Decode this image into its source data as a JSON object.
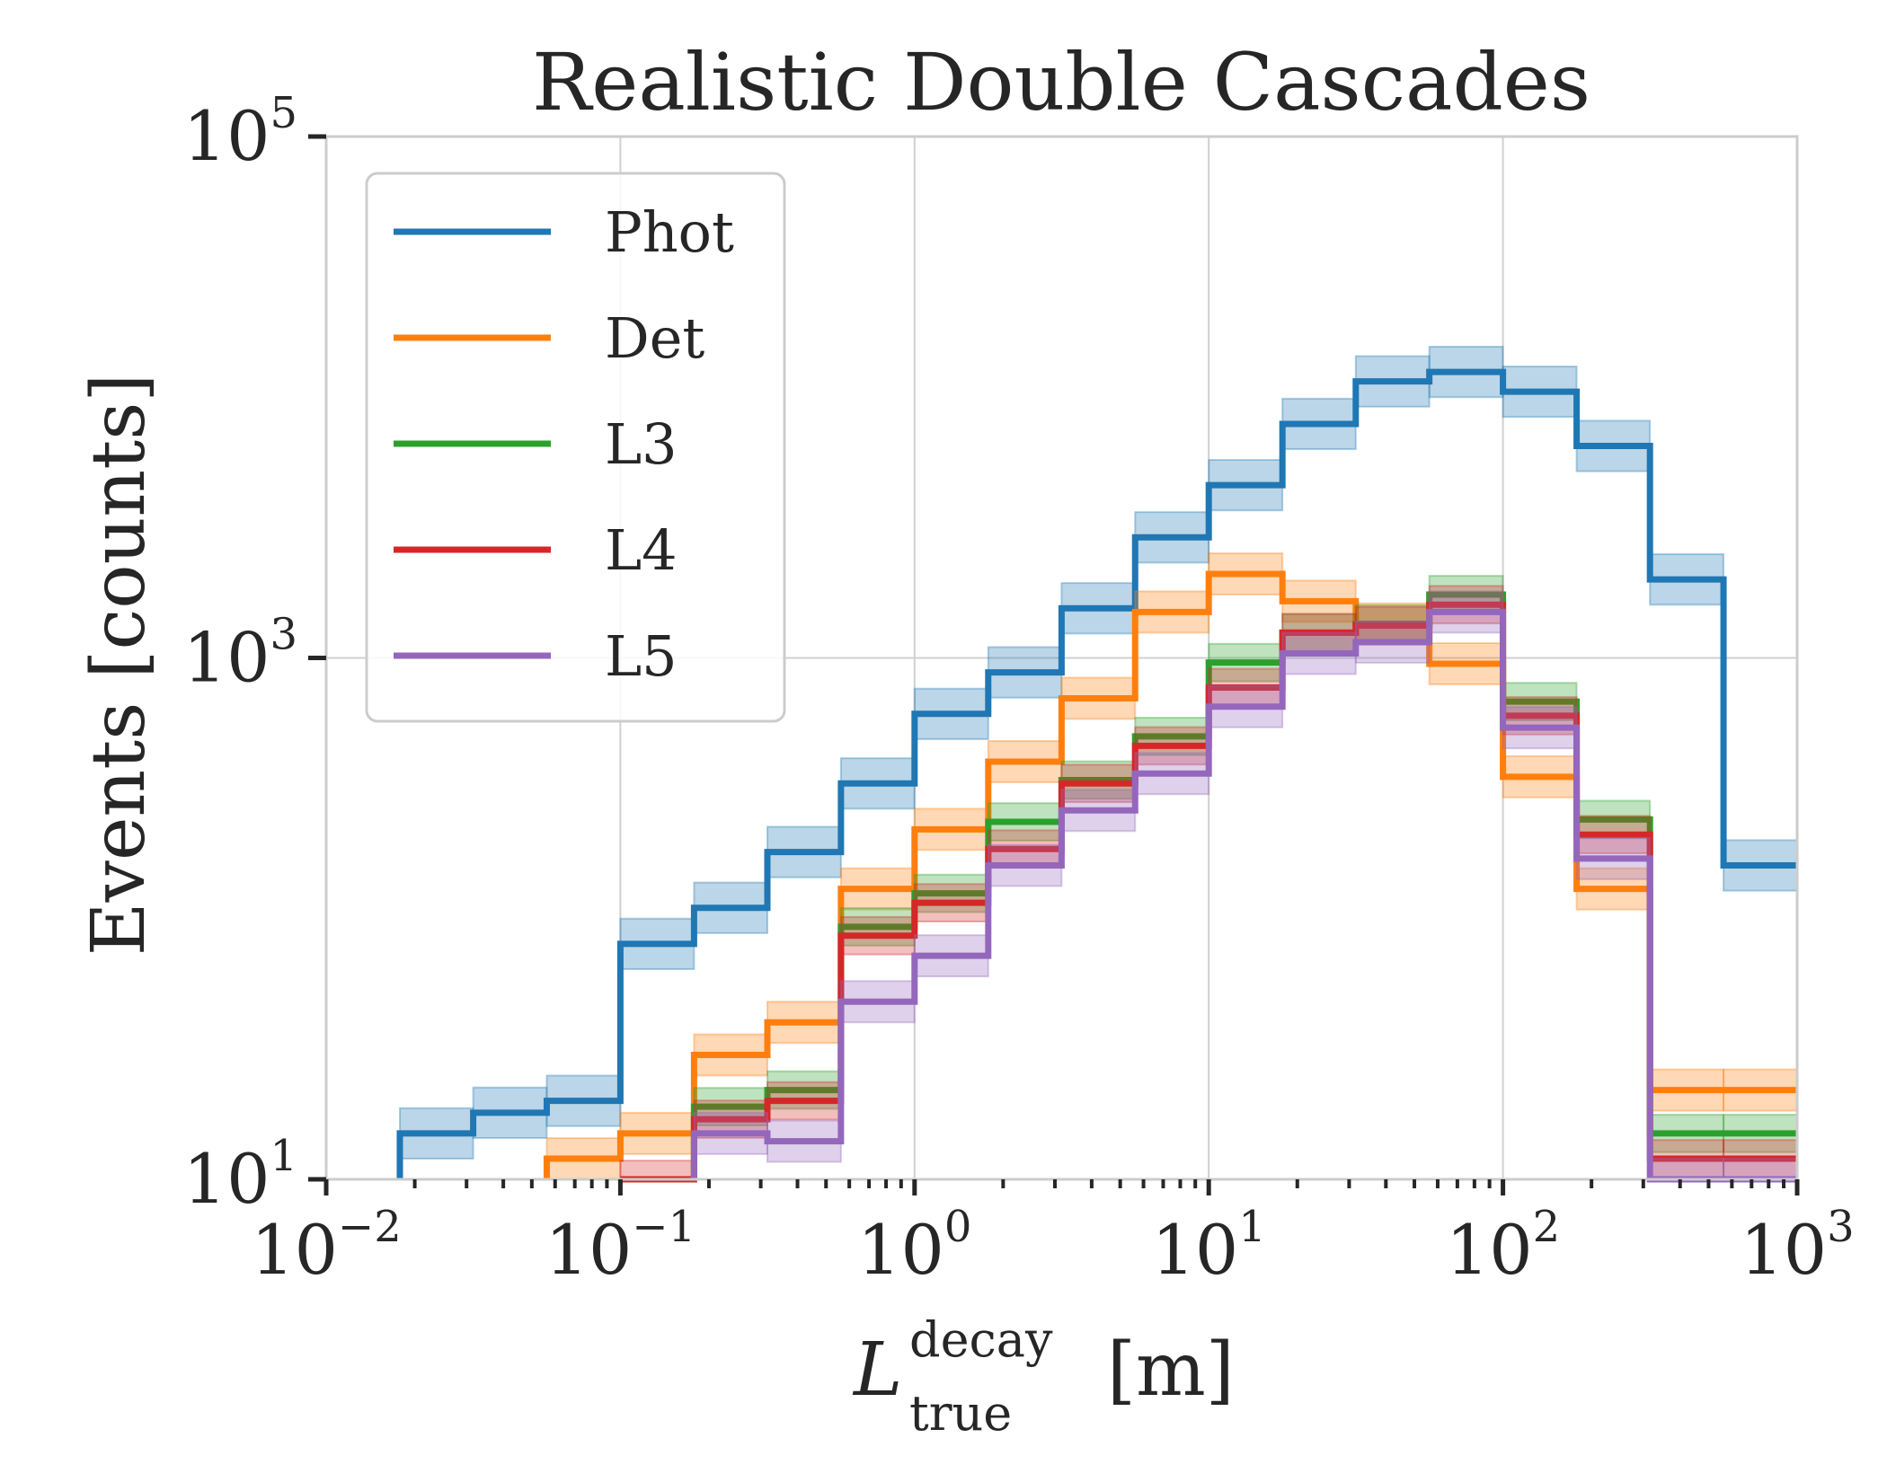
{
  "chart_data": {
    "type": "histogram-step",
    "title": "Realistic Double Cascades",
    "ylabel": "Events [counts]",
    "xlabel": {
      "symbol": "L",
      "superscript": "decay",
      "subscript": "true",
      "unit": "[m]"
    },
    "x_scale": "log",
    "y_scale": "log",
    "xlim": [
      0.01,
      1000
    ],
    "ylim": [
      10,
      100000
    ],
    "x_ticks": [
      {
        "base": "10",
        "exp": "−2"
      },
      {
        "base": "10",
        "exp": "−1"
      },
      {
        "base": "10",
        "exp": "0"
      },
      {
        "base": "10",
        "exp": "1"
      },
      {
        "base": "10",
        "exp": "2"
      },
      {
        "base": "10",
        "exp": "3"
      }
    ],
    "y_ticks": [
      {
        "base": "10",
        "exp": "1"
      },
      {
        "base": "10",
        "exp": "3"
      },
      {
        "base": "10",
        "exp": "5"
      }
    ],
    "grid": true,
    "legend_position": "top-left",
    "bin_edges": [
      0.01,
      0.0178,
      0.0316,
      0.0562,
      0.1,
      0.178,
      0.316,
      0.562,
      1.0,
      1.78,
      3.16,
      5.62,
      10.0,
      17.8,
      31.6,
      56.2,
      100,
      178,
      316,
      562,
      1000
    ],
    "series": [
      {
        "name": "Phot",
        "color": "#1f77b4",
        "values": [
          null,
          15,
          18,
          20,
          80,
          110,
          180,
          330,
          610,
          880,
          1550,
          2900,
          4600,
          7900,
          11500,
          12500,
          10500,
          6500,
          2000,
          160
        ],
        "band": 0.25
      },
      {
        "name": "Det",
        "color": "#ff7f0e",
        "values": [
          null,
          null,
          null,
          12,
          15,
          30,
          40,
          130,
          220,
          400,
          700,
          1500,
          2100,
          1650,
          1350,
          950,
          350,
          130,
          22,
          22
        ],
        "band": 0.2
      },
      {
        "name": "L3",
        "color": "#2ca02c",
        "values": [
          null,
          null,
          null,
          null,
          null,
          19,
          22,
          93,
          125,
          235,
          340,
          500,
          960,
          1250,
          1350,
          1750,
          680,
          240,
          15,
          15
        ],
        "band": 0.18
      },
      {
        "name": "L4",
        "color": "#d62728",
        "values": [
          null,
          null,
          null,
          null,
          10,
          17,
          20,
          86,
          115,
          185,
          330,
          460,
          770,
          1250,
          1330,
          1600,
          600,
          210,
          12,
          12
        ],
        "band": 0.18
      },
      {
        "name": "L5",
        "color": "#9467bd",
        "values": [
          null,
          null,
          null,
          null,
          null,
          15,
          14,
          48,
          72,
          160,
          260,
          360,
          650,
          1040,
          1150,
          1500,
          540,
          170,
          10,
          10
        ],
        "band": 0.2
      }
    ]
  }
}
